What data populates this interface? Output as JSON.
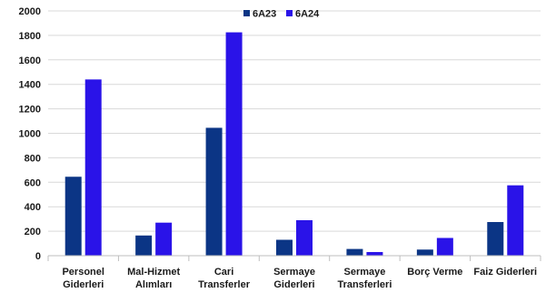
{
  "chart_data": {
    "type": "bar",
    "categories": [
      [
        "Personel",
        "Giderleri"
      ],
      [
        "Mal-Hizmet",
        "Alımları"
      ],
      [
        "Cari",
        "Transferler"
      ],
      [
        "Sermaye",
        "Giderleri"
      ],
      [
        "Sermaye",
        "Transferleri"
      ],
      [
        "Borç Verme"
      ],
      [
        "Faiz Giderleri"
      ]
    ],
    "series": [
      {
        "name": "6A23",
        "color": "#0b3585",
        "values": [
          645,
          165,
          1045,
          130,
          55,
          50,
          275
        ]
      },
      {
        "name": "6A24",
        "color": "#2a13e8",
        "values": [
          1440,
          270,
          1825,
          290,
          30,
          145,
          575
        ]
      }
    ],
    "yticks": [
      "0",
      "200",
      "400",
      "600",
      "800",
      "1000",
      "1200",
      "1400",
      "1600",
      "1800",
      "2000"
    ],
    "ylim": [
      0,
      2000
    ],
    "grid": true,
    "legend_position": "top-center",
    "title": "",
    "xlabel": "",
    "ylabel": ""
  }
}
